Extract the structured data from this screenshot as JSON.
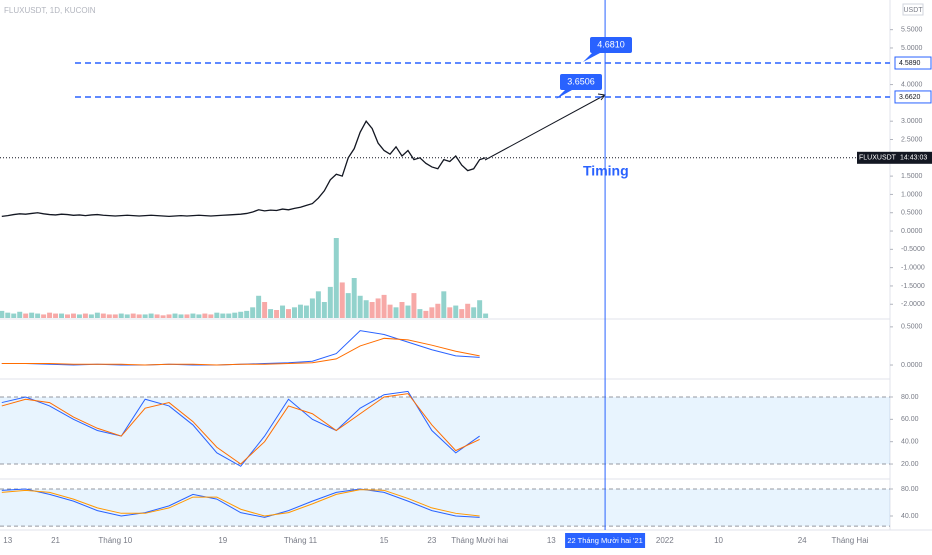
{
  "chart_data": {
    "type": "line",
    "title": "FLUXUSDT, 1D, KUCOIN",
    "currency": "USDT",
    "symbol_label": "FLUXUSDT",
    "countdown": "14:43:03",
    "annotations": [
      "4.6810",
      "3.6506",
      "Timing"
    ],
    "cursor": {
      "value": 100,
      "label": "22 Tháng Mười hai '21"
    },
    "xlim": [
      -1.3,
      147.7
    ],
    "xticks": [
      {
        "value": 0,
        "label": "13"
      },
      {
        "value": 8,
        "label": "21"
      },
      {
        "value": 18,
        "label": "Tháng 10"
      },
      {
        "value": 36,
        "label": "19"
      },
      {
        "value": 49,
        "label": "Tháng 11"
      },
      {
        "value": 63,
        "label": "15"
      },
      {
        "value": 71,
        "label": "23"
      },
      {
        "value": 79,
        "label": "Tháng Mười hai"
      },
      {
        "value": 91,
        "label": "13"
      },
      {
        "value": 110,
        "label": "2022"
      },
      {
        "value": 119,
        "label": "10"
      },
      {
        "value": 133,
        "label": "24"
      },
      {
        "value": 141,
        "label": "Tháng Hai"
      }
    ],
    "ylim": [
      -2.43,
      6.31
    ],
    "yticks": [
      {
        "value": 5.5,
        "label": "5.5000"
      },
      {
        "value": 5,
        "label": "5.0000"
      },
      {
        "value": 4,
        "label": "4.0000"
      },
      {
        "value": 3,
        "label": "3.0000"
      },
      {
        "value": 2.5,
        "label": "2.5000"
      },
      {
        "value": 1.5,
        "label": "1.5000"
      },
      {
        "value": 1,
        "label": "1.0000"
      },
      {
        "value": 0.5,
        "label": "0.5000"
      },
      {
        "value": 0,
        "label": "0.0000"
      },
      {
        "value": -0.5,
        "label": "-0.5000"
      },
      {
        "value": -1,
        "label": "-1.0000"
      },
      {
        "value": -1.5,
        "label": "-1.5000"
      },
      {
        "value": -2,
        "label": "-2.0000"
      }
    ],
    "levels": [
      {
        "value": 4.589,
        "label": "4.5890"
      },
      {
        "value": 3.662,
        "label": "3.6620"
      }
    ],
    "x": [
      -1,
      0,
      1,
      2,
      3,
      4,
      5,
      6,
      7,
      8,
      9,
      10,
      11,
      12,
      13,
      14,
      15,
      16,
      17,
      18,
      19,
      20,
      21,
      22,
      23,
      24,
      25,
      26,
      27,
      28,
      29,
      30,
      31,
      32,
      33,
      34,
      35,
      36,
      37,
      38,
      39,
      40,
      41,
      42,
      43,
      44,
      45,
      46,
      47,
      48,
      49,
      50,
      51,
      52,
      53,
      54,
      55,
      56,
      57,
      58,
      59,
      60,
      61,
      62,
      63,
      64,
      65,
      66,
      67,
      68,
      69,
      70,
      71,
      72,
      73,
      74,
      75,
      76,
      77,
      78,
      79,
      80
    ],
    "series": [
      {
        "name": "FLUXUSDT",
        "color": "#131722",
        "values": [
          0.4,
          0.42,
          0.45,
          0.47,
          0.46,
          0.48,
          0.5,
          0.47,
          0.45,
          0.44,
          0.46,
          0.45,
          0.43,
          0.44,
          0.42,
          0.44,
          0.45,
          0.43,
          0.42,
          0.41,
          0.42,
          0.43,
          0.42,
          0.41,
          0.42,
          0.43,
          0.42,
          0.41,
          0.4,
          0.41,
          0.42,
          0.41,
          0.42,
          0.43,
          0.42,
          0.41,
          0.42,
          0.43,
          0.44,
          0.45,
          0.46,
          0.48,
          0.52,
          0.58,
          0.55,
          0.57,
          0.56,
          0.6,
          0.58,
          0.62,
          0.65,
          0.7,
          0.75,
          0.9,
          1.1,
          1.4,
          1.55,
          1.5,
          2.0,
          2.25,
          2.7,
          3.0,
          2.8,
          2.4,
          2.2,
          2.1,
          2.3,
          2.05,
          2.2,
          1.95,
          2.0,
          1.85,
          1.75,
          1.7,
          1.95,
          1.9,
          2.05,
          1.8,
          1.65,
          1.7,
          1.95,
          2.0
        ]
      }
    ],
    "volume": [
      8,
      6,
      5,
      7,
      5,
      6,
      5,
      4,
      6,
      5,
      5,
      4,
      5,
      4,
      5,
      4,
      6,
      5,
      4,
      4,
      5,
      4,
      5,
      4,
      4,
      5,
      4,
      3,
      4,
      5,
      4,
      4,
      5,
      4,
      5,
      4,
      6,
      5,
      5,
      6,
      7,
      8,
      12,
      25,
      18,
      10,
      9,
      14,
      10,
      12,
      15,
      14,
      22,
      30,
      18,
      35,
      90,
      40,
      28,
      45,
      25,
      20,
      18,
      22,
      26,
      15,
      12,
      18,
      14,
      28,
      10,
      8,
      12,
      16,
      30,
      12,
      14,
      10,
      16,
      12,
      20,
      5
    ],
    "volume_colors": [
      "#26a69a",
      "#ef5350"
    ],
    "indicators": [
      {
        "ylim": [
          -0.17,
          0.59
        ],
        "yticks": [
          {
            "value": 0.5,
            "label": "0.5000"
          },
          {
            "value": 0,
            "label": "0.0000"
          }
        ],
        "x": [
          -1,
          3,
          7,
          11,
          15,
          19,
          23,
          27,
          31,
          35,
          39,
          43,
          47,
          51,
          55,
          59,
          63,
          67,
          71,
          75,
          79
        ],
        "series": [
          {
            "color": "#2962ff",
            "values": [
              0.02,
              0.02,
              0.01,
              0.0,
              0.01,
              0.0,
              0.0,
              0.01,
              0.0,
              0.0,
              0.01,
              0.02,
              0.03,
              0.05,
              0.15,
              0.45,
              0.4,
              0.3,
              0.2,
              0.12,
              0.1
            ]
          },
          {
            "color": "#ff6d00",
            "values": [
              0.02,
              0.02,
              0.02,
              0.01,
              0.01,
              0.01,
              0.0,
              0.01,
              0.01,
              0.0,
              0.01,
              0.01,
              0.02,
              0.03,
              0.08,
              0.25,
              0.35,
              0.33,
              0.26,
              0.18,
              0.12
            ]
          }
        ]
      },
      {
        "ylim": [
          7.5,
          95.2
        ],
        "band": [
          20,
          80
        ],
        "yticks": [
          {
            "value": 80,
            "label": "80.00"
          },
          {
            "value": 60,
            "label": "60.00"
          },
          {
            "value": 40,
            "label": "40.00"
          },
          {
            "value": 20,
            "label": "20.00"
          }
        ],
        "x": [
          -1,
          3,
          7,
          11,
          15,
          19,
          23,
          27,
          31,
          35,
          39,
          43,
          47,
          51,
          55,
          59,
          63,
          67,
          71,
          75,
          79
        ],
        "series": [
          {
            "color": "#2962ff",
            "values": [
              75,
              80,
              72,
              60,
              50,
              45,
              78,
              72,
              55,
              30,
              18,
              45,
              78,
              60,
              50,
              70,
              82,
              85,
              50,
              30,
              45
            ]
          },
          {
            "color": "#ff6d00",
            "values": [
              72,
              78,
              75,
              62,
              52,
              45,
              70,
              75,
              58,
              35,
              20,
              40,
              72,
              65,
              50,
              65,
              80,
              83,
              55,
              32,
              42
            ]
          }
        ]
      },
      {
        "ylim": [
          19.3,
          93.3
        ],
        "band": [
          25,
          80
        ],
        "yticks": [
          {
            "value": 80,
            "label": "80.00"
          },
          {
            "value": 40,
            "label": "40.00"
          }
        ],
        "x": [
          -1,
          3,
          7,
          11,
          15,
          19,
          23,
          27,
          31,
          35,
          39,
          43,
          47,
          51,
          55,
          59,
          63,
          67,
          71,
          75,
          79
        ],
        "series": [
          {
            "color": "#2962ff",
            "values": [
              78,
              80,
              72,
              62,
              48,
              40,
              45,
              55,
              72,
              65,
              45,
              38,
              48,
              62,
              75,
              80,
              75,
              62,
              48,
              40,
              38
            ]
          },
          {
            "color": "#ff9800",
            "values": [
              75,
              78,
              75,
              65,
              52,
              44,
              44,
              52,
              68,
              68,
              50,
              40,
              45,
              58,
              72,
              79,
              78,
              66,
              52,
              44,
              40
            ]
          }
        ]
      }
    ]
  }
}
